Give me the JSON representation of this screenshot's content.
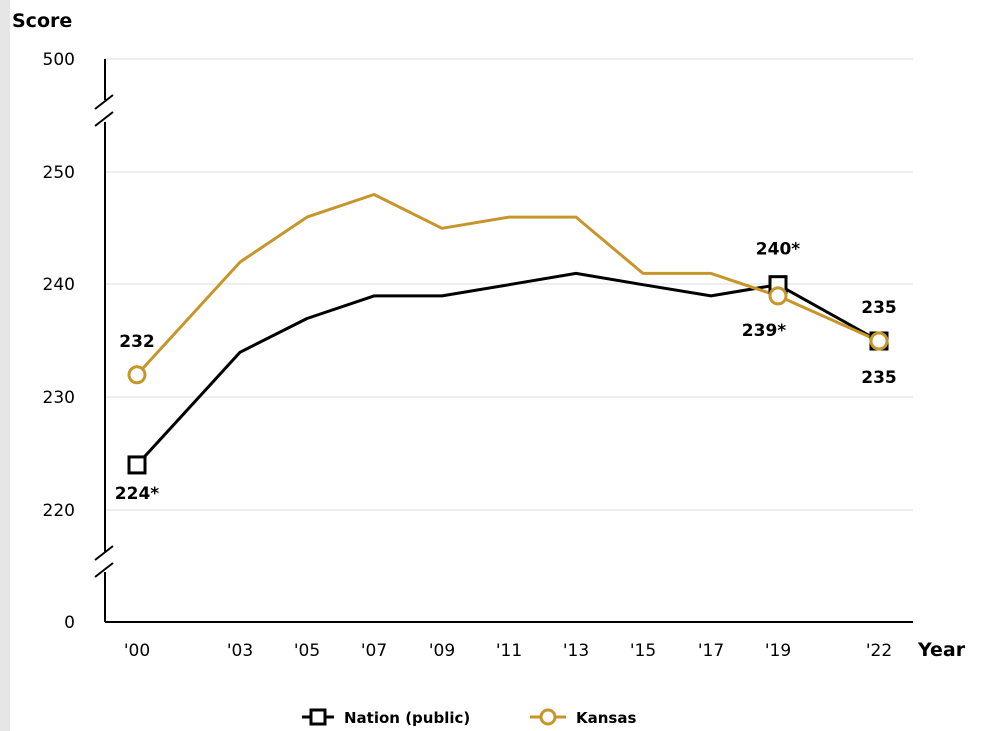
{
  "chart_data": {
    "type": "line",
    "ylabel": "Score",
    "xlabel": "Year",
    "x": [
      "'00",
      "'03",
      "'05",
      "'07",
      "'09",
      "'11",
      "'13",
      "'15",
      "'17",
      "'19",
      "'22"
    ],
    "y_ticks": [
      "0",
      "220",
      "230",
      "240",
      "250",
      "500"
    ],
    "ylim": [
      220,
      250
    ],
    "y_axis_breaks": true,
    "grid": true,
    "legend_position": "bottom",
    "series": [
      {
        "name": "Nation (public)",
        "marker": "square",
        "color": "#000000",
        "values": [
          224,
          234,
          237,
          239,
          239,
          240,
          241,
          240,
          239,
          240,
          235
        ]
      },
      {
        "name": "Kansas",
        "marker": "circle",
        "color": "#c6962b",
        "values": [
          232,
          242,
          246,
          248,
          245,
          246,
          246,
          241,
          241,
          239,
          235
        ]
      }
    ],
    "annotations": [
      {
        "series": 0,
        "x": "'00",
        "text": "224*"
      },
      {
        "series": 0,
        "x": "'19",
        "text": "240*"
      },
      {
        "series": 0,
        "x": "'22",
        "text": "235"
      },
      {
        "series": 1,
        "x": "'00",
        "text": "232"
      },
      {
        "series": 1,
        "x": "'19",
        "text": "239*"
      },
      {
        "series": 1,
        "x": "'22",
        "text": "235"
      }
    ]
  }
}
